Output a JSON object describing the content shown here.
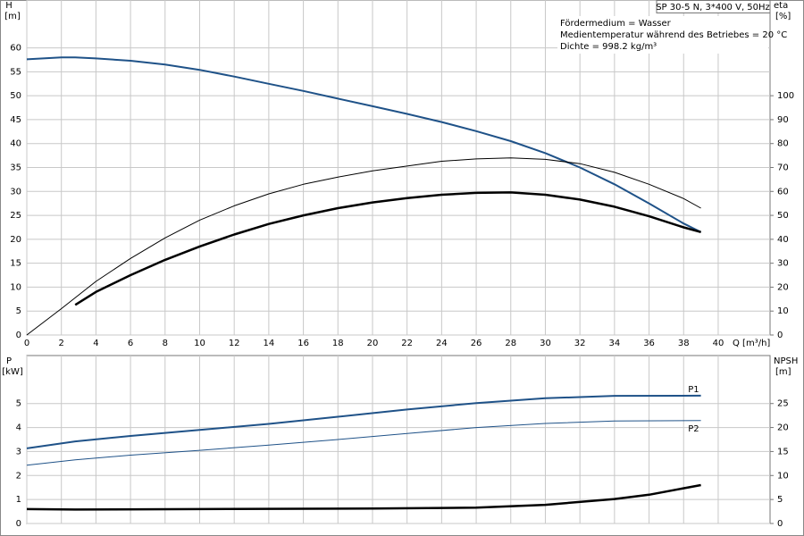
{
  "chart_data": [
    {
      "type": "line",
      "title": "SP 30-5 N, 3*400 V, 50Hz",
      "annotations": [
        "Fördermedium = Wasser",
        "Medientemperatur während des Betriebes = 20 °C",
        "Dichte = 998.2 kg/m³"
      ],
      "y_label": "H",
      "y_unit": "[m]",
      "y2_label": "eta",
      "y2_unit": "[%]",
      "x_label": "Q [m³/h]",
      "xlim": [
        0,
        43
      ],
      "xticks": [
        0,
        2,
        4,
        6,
        8,
        10,
        12,
        14,
        16,
        18,
        20,
        22,
        24,
        26,
        28,
        30,
        32,
        34,
        36,
        38,
        40
      ],
      "ylim": [
        0,
        70
      ],
      "yticks": [
        0,
        5,
        10,
        15,
        20,
        25,
        30,
        35,
        40,
        45,
        50,
        55,
        60
      ],
      "y2lim": [
        0,
        140
      ],
      "y2ticks": [
        0,
        10,
        20,
        30,
        40,
        50,
        60,
        70,
        80,
        90,
        100
      ],
      "grid": true,
      "xtick_labels": true,
      "series": [
        {
          "color": "#1f5288",
          "line_width": 2,
          "x": [
            0,
            2,
            2.8,
            4,
            6,
            8,
            10,
            12,
            14,
            16,
            18,
            20,
            22,
            24,
            26,
            28,
            30,
            32,
            34,
            36,
            38,
            39
          ],
          "values": [
            57.6,
            58,
            58,
            57.8,
            57.3,
            56.5,
            55.4,
            54,
            52.5,
            51,
            49.4,
            47.8,
            46.2,
            44.5,
            42.6,
            40.5,
            38,
            35,
            31.5,
            27.5,
            23.3,
            21.5
          ]
        },
        {
          "color": "#000000",
          "line_width": 1,
          "axis": "y2",
          "x": [
            0,
            2,
            4,
            6,
            8,
            10,
            12,
            14,
            16,
            18,
            20,
            22,
            24,
            26,
            28,
            30,
            32,
            34,
            36,
            38,
            39
          ],
          "values": [
            0,
            11,
            22.4,
            32,
            40.6,
            48,
            54,
            59,
            63,
            66,
            68.6,
            70.6,
            72.6,
            73.6,
            74,
            73.4,
            71.6,
            68,
            63,
            57,
            53
          ]
        },
        {
          "color": "#000000",
          "line_width": 2.5,
          "axis": "y2",
          "x": [
            2.8,
            4,
            6,
            8,
            10,
            12,
            14,
            16,
            18,
            20,
            22,
            24,
            26,
            28,
            30,
            32,
            34,
            36,
            38,
            39
          ],
          "values": [
            12.6,
            18,
            25,
            31.4,
            37,
            42,
            46.4,
            50,
            53,
            55.4,
            57.2,
            58.6,
            59.4,
            59.6,
            58.6,
            56.6,
            53.6,
            49.6,
            45,
            43
          ]
        }
      ]
    },
    {
      "type": "line",
      "y_label": "P",
      "y_unit": "[kW]",
      "y2_label": "NPSH",
      "y2_unit": "[m]",
      "xlim": [
        0,
        43
      ],
      "xticks": [
        0,
        2,
        4,
        6,
        8,
        10,
        12,
        14,
        16,
        18,
        20,
        22,
        24,
        26,
        28,
        30,
        32,
        34,
        36,
        38,
        40
      ],
      "ylim": [
        0,
        7
      ],
      "yticks": [
        0,
        1,
        2,
        3,
        4,
        5
      ],
      "y2lim": [
        0,
        35
      ],
      "y2ticks": [
        0,
        5,
        10,
        15,
        20,
        25
      ],
      "grid": true,
      "xtick_labels": false,
      "series": [
        {
          "name": "P1",
          "color": "#1f5288",
          "line_width": 2,
          "x": [
            0,
            2.8,
            6,
            10,
            14,
            18,
            22,
            26,
            30,
            34,
            39
          ],
          "values": [
            3.13,
            3.42,
            3.65,
            3.9,
            4.15,
            4.45,
            4.75,
            5.02,
            5.22,
            5.32,
            5.33
          ]
        },
        {
          "name": "P2",
          "color": "#1f5288",
          "line_width": 1,
          "x": [
            0,
            2.8,
            6,
            10,
            14,
            18,
            22,
            26,
            30,
            34,
            39
          ],
          "values": [
            2.43,
            2.65,
            2.85,
            3.05,
            3.27,
            3.5,
            3.75,
            4.0,
            4.17,
            4.27,
            4.29
          ]
        },
        {
          "color": "#000000",
          "line_width": 2.5,
          "axis": "y2",
          "x": [
            0,
            2.8,
            10,
            20,
            26,
            30,
            34,
            36,
            39
          ],
          "values": [
            3,
            2.9,
            3,
            3.1,
            3.3,
            3.9,
            5.1,
            6,
            8
          ]
        }
      ]
    }
  ]
}
